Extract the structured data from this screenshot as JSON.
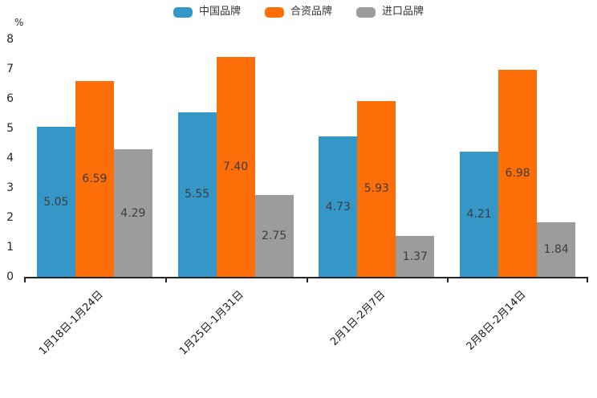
{
  "chart_data": {
    "type": "bar",
    "title": "",
    "unit_label": "%",
    "categories": [
      "1月18日-1月24日",
      "1月25日-1月31日",
      "2月1日-2月7日",
      "2月8日-2月14日"
    ],
    "series": [
      {
        "name": "中国品牌",
        "color": "#3597c8",
        "values": [
          5.05,
          5.55,
          4.73,
          4.21
        ]
      },
      {
        "name": "合资品牌",
        "color": "#fd6e08",
        "values": [
          6.59,
          7.4,
          5.93,
          6.98
        ]
      },
      {
        "name": "进口品牌",
        "color": "#9c9c9c",
        "values": [
          4.29,
          2.75,
          1.37,
          1.84
        ]
      }
    ],
    "ylim": [
      0,
      8
    ],
    "yticks": [
      0,
      1,
      2,
      3,
      4,
      5,
      6,
      7,
      8
    ],
    "legend_position": "top",
    "grid": false,
    "value_label_decimals": 2,
    "axis_color": "#262626"
  }
}
